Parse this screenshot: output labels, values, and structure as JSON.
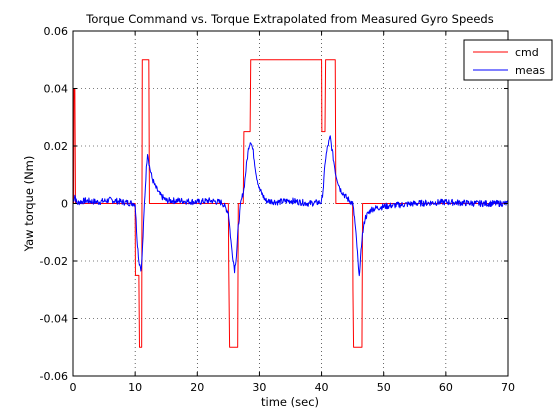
{
  "chart_data": {
    "type": "line",
    "title": "Torque Command vs. Torque Extrapolated from Measured Gyro Speeds",
    "xlabel": "time (sec)",
    "ylabel": "Yaw torque (Nm)",
    "xlim": [
      0,
      70
    ],
    "ylim": [
      -0.06,
      0.06
    ],
    "xticks": [
      0,
      10,
      20,
      30,
      40,
      50,
      60,
      70
    ],
    "yticks": [
      -0.06,
      -0.04,
      -0.02,
      0,
      0.02,
      0.04,
      0.06
    ],
    "xtick_labels": [
      "0",
      "10",
      "20",
      "30",
      "40",
      "50",
      "60",
      "70"
    ],
    "ytick_labels": [
      "-0.06",
      "-0.04",
      "-0.02",
      "0",
      "0.02",
      "0.04",
      "0.06"
    ],
    "grid": true,
    "legend_position": "top-right",
    "series": [
      {
        "name": "cmd",
        "color": "#ff0000",
        "x": [
          0,
          0.1,
          0.15,
          0.3,
          0.4,
          10,
          10.05,
          10.15,
          10.6,
          10.7,
          11.05,
          11.15,
          12.2,
          12.3,
          25,
          25.05,
          25.2,
          26.5,
          26.6,
          27.4,
          27.5,
          28.5,
          28.6,
          40,
          40.05,
          40.15,
          40.55,
          40.65,
          41,
          41.1,
          42.2,
          42.3,
          45,
          45.05,
          45.15,
          46.5,
          46.6,
          70
        ],
        "y": [
          0,
          0,
          0.04,
          0.04,
          0,
          0,
          -0.025,
          -0.025,
          -0.025,
          -0.05,
          -0.05,
          0.05,
          0.05,
          0,
          0,
          -0.02,
          -0.05,
          -0.05,
          0,
          0,
          0.025,
          0.025,
          0.05,
          0.05,
          0.025,
          0.025,
          0.025,
          0.05,
          0.05,
          0.05,
          0.05,
          0,
          0,
          -0.03,
          -0.05,
          -0.05,
          0,
          0
        ]
      },
      {
        "name": "meas",
        "color": "#0000ff",
        "x": [
          0,
          0.3,
          0.6,
          1,
          2,
          4,
          6,
          8,
          10,
          10.3,
          10.6,
          11,
          11.2,
          11.5,
          11.8,
          12,
          12.3,
          12.7,
          13.2,
          14,
          15,
          17,
          20,
          22,
          24,
          25,
          25.5,
          26,
          26.3,
          26.6,
          27,
          27.5,
          28,
          28.3,
          28.6,
          29,
          29.5,
          30,
          31,
          33,
          35,
          38,
          40,
          40.3,
          40.6,
          41,
          41.4,
          41.8,
          42.3,
          43,
          44,
          45,
          45.3,
          45.7,
          46,
          46.2,
          46.5,
          47,
          48,
          50,
          55,
          60,
          65,
          70
        ],
        "y": [
          0.0005,
          0.003,
          0,
          0.0005,
          0.001,
          0.0005,
          0.0012,
          0.0005,
          0,
          -0.012,
          -0.02,
          -0.023,
          -0.015,
          0,
          0.012,
          0.018,
          0.013,
          0.009,
          0.006,
          0.003,
          0.001,
          0.001,
          0.0005,
          0.001,
          0.0003,
          -0.003,
          -0.015,
          -0.023,
          -0.018,
          -0.008,
          0,
          0.005,
          0.015,
          0.02,
          0.022,
          0.018,
          0.01,
          0.005,
          0.001,
          0.0005,
          0.001,
          0,
          0.0005,
          0.006,
          0.015,
          0.02,
          0.023,
          0.017,
          0.01,
          0.005,
          0.002,
          0,
          -0.005,
          -0.015,
          -0.025,
          -0.022,
          -0.012,
          -0.005,
          -0.002,
          -0.001,
          0,
          0.0005,
          0,
          0
        ]
      }
    ]
  }
}
